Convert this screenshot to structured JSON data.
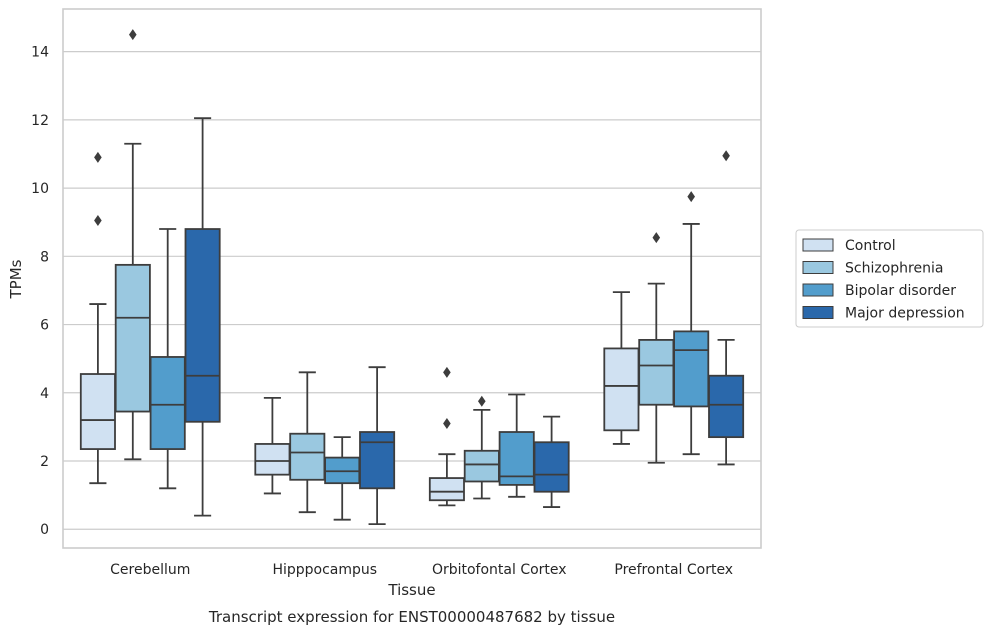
{
  "caption": "Transcript expression for ENST00000487682 by tissue",
  "chart_data": {
    "type": "box",
    "xlabel": "Tissue",
    "ylabel": "TPMs",
    "ylim": [
      -0.55,
      15.25
    ],
    "yticks": [
      0,
      2,
      4,
      6,
      8,
      10,
      12,
      14
    ],
    "grid": "horizontal",
    "legend_position": "right",
    "categories": [
      "Cerebellum",
      "Hipppocampus",
      "Orbitofontal Cortex",
      "Prefrontal Cortex"
    ],
    "series": [
      {
        "name": "Control",
        "color": "#d0e1f2",
        "boxes": [
          {
            "whislo": 1.35,
            "q1": 2.35,
            "med": 3.2,
            "q3": 4.55,
            "whishi": 6.6,
            "fliers": [
              9.05,
              10.9
            ]
          },
          {
            "whislo": 1.05,
            "q1": 1.6,
            "med": 2.0,
            "q3": 2.5,
            "whishi": 3.85,
            "fliers": []
          },
          {
            "whislo": 0.7,
            "q1": 0.85,
            "med": 1.1,
            "q3": 1.5,
            "whishi": 2.2,
            "fliers": [
              3.1,
              4.6
            ]
          },
          {
            "whislo": 2.5,
            "q1": 2.9,
            "med": 4.2,
            "q3": 5.3,
            "whishi": 6.95,
            "fliers": []
          }
        ]
      },
      {
        "name": "Schizophrenia",
        "color": "#9ac8e0",
        "boxes": [
          {
            "whislo": 2.05,
            "q1": 3.45,
            "med": 6.2,
            "q3": 7.75,
            "whishi": 11.3,
            "fliers": [
              14.5
            ]
          },
          {
            "whislo": 0.5,
            "q1": 1.45,
            "med": 2.25,
            "q3": 2.8,
            "whishi": 4.6,
            "fliers": []
          },
          {
            "whislo": 0.9,
            "q1": 1.4,
            "med": 1.9,
            "q3": 2.3,
            "whishi": 3.5,
            "fliers": [
              3.75
            ]
          },
          {
            "whislo": 1.95,
            "q1": 3.65,
            "med": 4.8,
            "q3": 5.55,
            "whishi": 7.2,
            "fliers": [
              8.55
            ]
          }
        ]
      },
      {
        "name": "Bipolar disorder",
        "color": "#529dcc",
        "boxes": [
          {
            "whislo": 1.2,
            "q1": 2.35,
            "med": 3.65,
            "q3": 5.05,
            "whishi": 8.8,
            "fliers": []
          },
          {
            "whislo": 0.28,
            "q1": 1.35,
            "med": 1.7,
            "q3": 2.1,
            "whishi": 2.7,
            "fliers": []
          },
          {
            "whislo": 0.95,
            "q1": 1.3,
            "med": 1.55,
            "q3": 2.85,
            "whishi": 3.95,
            "fliers": []
          },
          {
            "whislo": 2.2,
            "q1": 3.6,
            "med": 5.25,
            "q3": 5.8,
            "whishi": 8.95,
            "fliers": [
              9.75
            ]
          }
        ]
      },
      {
        "name": "Major depression",
        "color": "#2a68ab",
        "boxes": [
          {
            "whislo": 0.4,
            "q1": 3.15,
            "med": 4.5,
            "q3": 8.8,
            "whishi": 12.05,
            "fliers": []
          },
          {
            "whislo": 0.15,
            "q1": 1.2,
            "med": 2.55,
            "q3": 2.85,
            "whishi": 4.75,
            "fliers": []
          },
          {
            "whislo": 0.65,
            "q1": 1.1,
            "med": 1.6,
            "q3": 2.55,
            "whishi": 3.3,
            "fliers": []
          },
          {
            "whislo": 1.9,
            "q1": 2.7,
            "med": 3.65,
            "q3": 4.5,
            "whishi": 5.55,
            "fliers": [
              10.95
            ]
          }
        ]
      }
    ]
  }
}
